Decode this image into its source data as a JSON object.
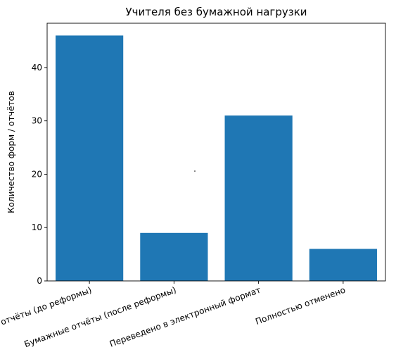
{
  "chart_data": {
    "type": "bar",
    "title": "Учителя без бумажной нагрузки",
    "xlabel": "",
    "ylabel": "Количество форм / отчётов",
    "categories": [
      "Бумажные отчёты (до реформы)",
      "Бумажные отчёты (после реформы)",
      "Переведено в электронный формат",
      "Полностью отменено"
    ],
    "values": [
      46,
      9,
      31,
      6
    ],
    "ylim": [
      0,
      48.3
    ],
    "yticks": [
      0,
      10,
      20,
      30,
      40
    ],
    "grid": false,
    "bar_color": "#1f77b4"
  }
}
